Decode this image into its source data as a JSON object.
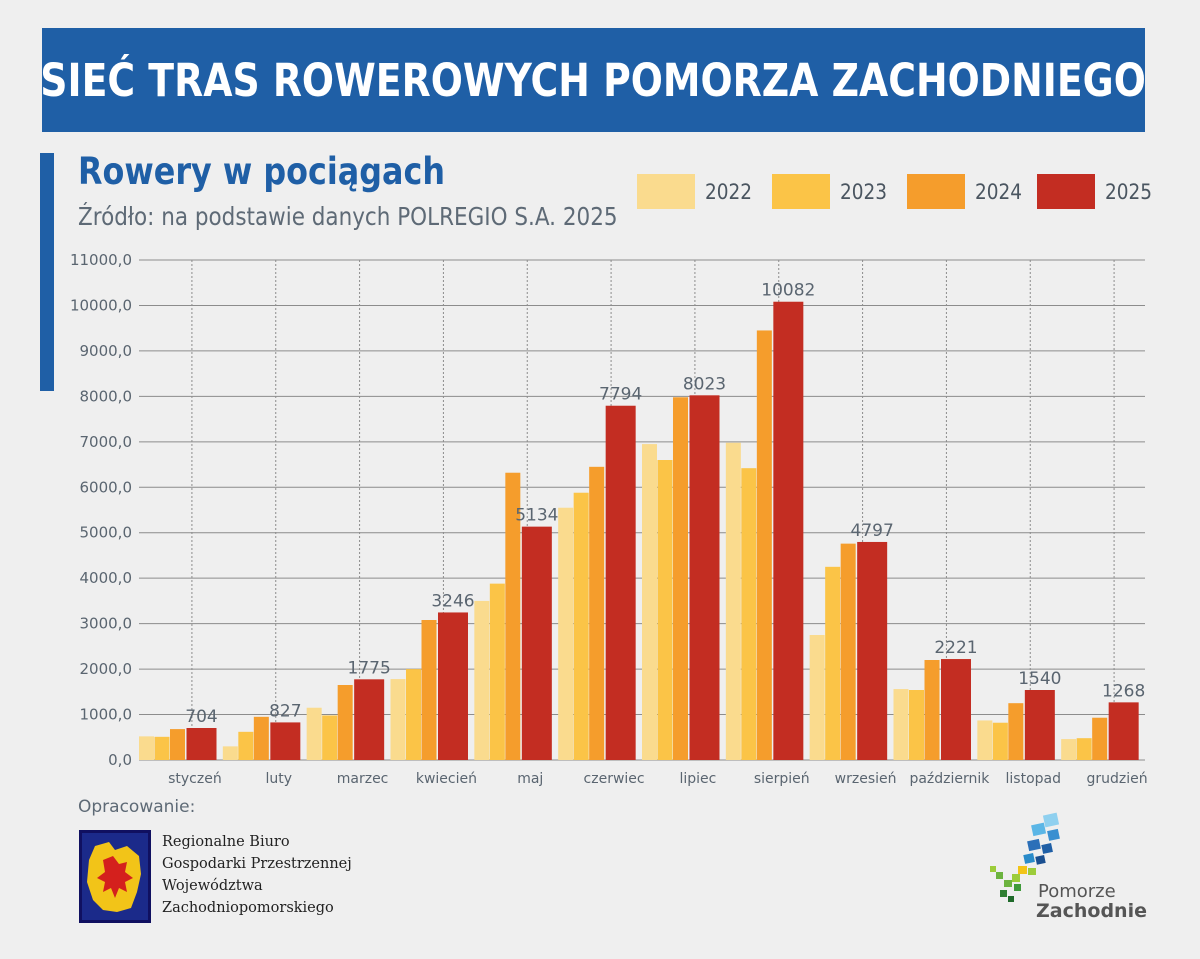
{
  "header": {
    "banner_title": "SIEĆ TRAS ROWEROWYCH POMORZA ZACHODNIEGO"
  },
  "chart_data": {
    "type": "bar",
    "title": "Rowery w pociągach",
    "subtitle": "Źródło: na podstawie danych POLREGIO S.A. 2025",
    "xlabel": "",
    "ylabel": "",
    "ylim": [
      0,
      11000
    ],
    "y_ticks": [
      "0,0",
      "1000,0",
      "2000,0",
      "3000,0",
      "4000,0",
      "5000,0",
      "6000,0",
      "7000,0",
      "8000,0",
      "9000,0",
      "10000,0",
      "11000,0"
    ],
    "grid": true,
    "legend_position": "top-right",
    "categories": [
      "styczeń",
      "luty",
      "marzec",
      "kwiecień",
      "maj",
      "czerwiec",
      "lipiec",
      "sierpień",
      "wrzesień",
      "październik",
      "listopad",
      "grudzień"
    ],
    "series": [
      {
        "name": "2022",
        "color": "#fadb8e",
        "values": [
          520,
          300,
          1150,
          1780,
          3500,
          5550,
          6950,
          6980,
          2750,
          1560,
          870,
          460
        ]
      },
      {
        "name": "2023",
        "color": "#fbc447",
        "values": [
          510,
          620,
          980,
          2000,
          3880,
          5880,
          6600,
          6420,
          4250,
          1540,
          820,
          480
        ]
      },
      {
        "name": "2024",
        "color": "#f59d2c",
        "values": [
          680,
          950,
          1650,
          3080,
          6320,
          6450,
          7980,
          9450,
          4760,
          2200,
          1250,
          930
        ]
      },
      {
        "name": "2025",
        "color": "#c32d22",
        "values": [
          704,
          827,
          1775,
          3246,
          5134,
          7794,
          8023,
          10082,
          4797,
          2221,
          1540,
          1268
        ]
      }
    ],
    "data_labels": [
      "704",
      "827",
      "1775",
      "3246",
      "5134",
      "7794",
      "8023",
      "10082",
      "4797",
      "2221",
      "1540",
      "1268"
    ]
  },
  "footer": {
    "prepared_by_label": "Opracowanie:",
    "org_lines": [
      "Regionalne Biuro",
      "Gospodarki Przestrzennej",
      "Województwa",
      "Zachodniopomorskiego"
    ],
    "brand_line1": "Pomorze",
    "brand_line2": "Zachodnie"
  },
  "icons": {
    "org_logo": "coat-of-arms-griffin-icon",
    "brand_logo": "pomorze-zachodnie-logo-icon"
  }
}
